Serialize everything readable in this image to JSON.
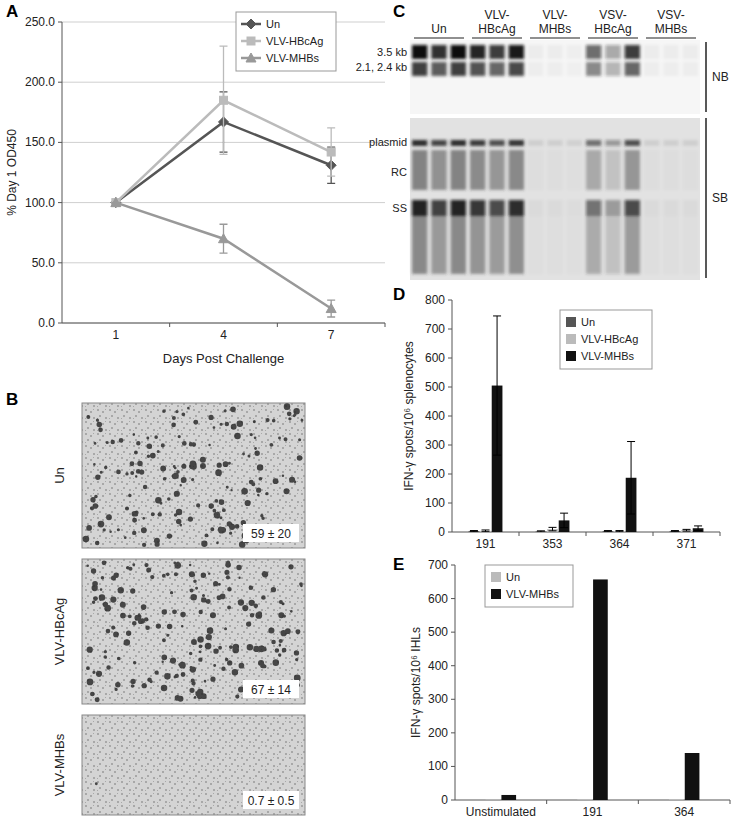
{
  "chart_data": [
    {
      "panel": "A",
      "type": "line",
      "xlabel": "Days Post Challenge",
      "ylabel": "% Day 1 OD450",
      "categories": [
        "1",
        "4",
        "7"
      ],
      "ylim": [
        0,
        250
      ],
      "yticks": [
        {
          "value": 0,
          "label": "0.0"
        },
        {
          "value": 50,
          "label": "50.0"
        },
        {
          "value": 100,
          "label": "100.0"
        },
        {
          "value": 150,
          "label": "150.0"
        },
        {
          "value": 200,
          "label": "200.0"
        },
        {
          "value": 250,
          "label": "250.0"
        }
      ],
      "grid": true,
      "legend": "top right",
      "series": [
        {
          "name": "Un",
          "color": "#555555",
          "marker": "diamond",
          "values": [
            100,
            167,
            131
          ],
          "errors": [
            0,
            25,
            15
          ]
        },
        {
          "name": "VLV-HBcAg",
          "color": "#bbbbbb",
          "marker": "square",
          "values": [
            100,
            185,
            142
          ],
          "errors": [
            0,
            45,
            20
          ]
        },
        {
          "name": "VLV-MHBs",
          "color": "#999999",
          "marker": "triangle",
          "values": [
            100,
            70,
            12
          ],
          "errors": [
            0,
            12,
            7
          ]
        }
      ]
    },
    {
      "panel": "D",
      "type": "bar",
      "ylabel": "IFN-γ spots/10⁶ splenocytes",
      "categories": [
        "191",
        "353",
        "364",
        "371"
      ],
      "ylim": [
        0,
        800
      ],
      "yticks": [
        0,
        100,
        200,
        300,
        400,
        500,
        600,
        700,
        800
      ],
      "grid": false,
      "legend": "top right",
      "series": [
        {
          "name": "Un",
          "color": "#555555",
          "values": [
            3,
            2,
            3,
            3
          ],
          "errors": [
            2,
            2,
            2,
            2
          ]
        },
        {
          "name": "VLV-HBcAg",
          "color": "#bbbbbb",
          "values": [
            4,
            10,
            3,
            6
          ],
          "errors": [
            3,
            6,
            2,
            3
          ]
        },
        {
          "name": "VLV-MHBs",
          "color": "#111111",
          "values": [
            505,
            40,
            187,
            13
          ],
          "errors": [
            240,
            25,
            125,
            8
          ]
        }
      ]
    },
    {
      "panel": "E",
      "type": "bar",
      "ylabel": "IFN-γ spots/10⁶ IHLs",
      "categories": [
        "Unstimulated",
        "191",
        "364"
      ],
      "ylim": [
        0,
        700
      ],
      "yticks": [
        0,
        100,
        200,
        300,
        400,
        500,
        600,
        700
      ],
      "grid": false,
      "legend": "top left",
      "series": [
        {
          "name": "Un",
          "color": "#bbbbbb",
          "values": [
            2,
            3,
            3
          ]
        },
        {
          "name": "VLV-MHBs",
          "color": "#111111",
          "values": [
            15,
            657,
            140
          ]
        }
      ]
    }
  ],
  "images": {
    "B": {
      "panel": "B",
      "rows": [
        {
          "label": "Un",
          "count": "59 ± 20"
        },
        {
          "label": "VLV-HBcAg",
          "count": "67 ± 14"
        },
        {
          "label": "VLV-MHBs",
          "count": "0.7 ± 0.5"
        }
      ]
    },
    "C": {
      "panel": "C",
      "groups": [
        {
          "label": "Un",
          "lanes": [
            1,
            0.85,
            1
          ]
        },
        {
          "label": "VLV-HBcAg",
          "lanes": [
            0.9,
            0.8,
            0.95
          ]
        },
        {
          "label": "VLV-MHBs",
          "lanes": [
            0.04,
            0.04,
            0.03
          ]
        },
        {
          "label": "VSV-HBcAg",
          "lanes": [
            0.6,
            0.35,
            0.8
          ]
        },
        {
          "label": "VSV-MHBs",
          "lanes": [
            0.04,
            0.04,
            0.04
          ]
        }
      ],
      "band_labels": [
        "3.5 kb",
        "2.1, 2.4 kb",
        "plasmid",
        "RC",
        "SS"
      ],
      "blot_labels": [
        "NB",
        "SB"
      ]
    }
  }
}
